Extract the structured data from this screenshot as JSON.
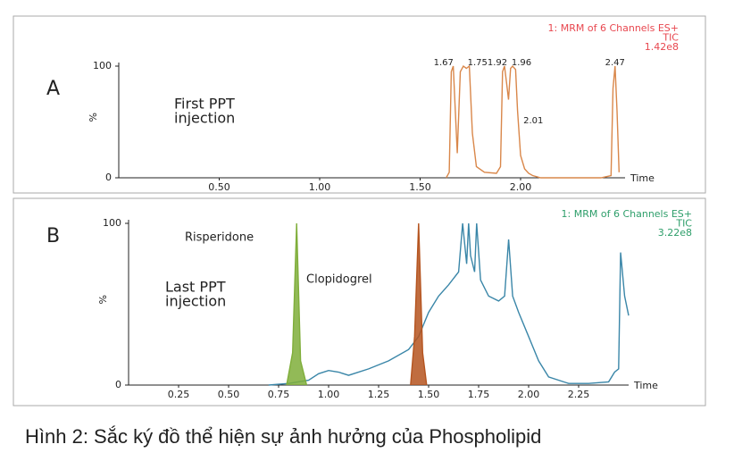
{
  "chart_data": [
    {
      "type": "line",
      "panel": "A",
      "header": [
        "1: MRM of 6 Channels ES+",
        "TIC",
        "1.42e8"
      ],
      "header_color": "#e8474f",
      "annotation": [
        "First PPT",
        "injection"
      ],
      "xlabel": "Time",
      "ylabel": "%",
      "xlim": [
        0,
        2.52
      ],
      "ylim": [
        0,
        100
      ],
      "xticks": [
        {
          "value": 0.5,
          "label": "0.50"
        },
        {
          "value": 1.0,
          "label": "1.00"
        },
        {
          "value": 1.5,
          "label": "1.50"
        },
        {
          "value": 2.0,
          "label": "2.00"
        }
      ],
      "yticks": [
        0,
        100
      ],
      "peak_labels": [
        1.67,
        1.75,
        1.92,
        1.96,
        2.01,
        2.47
      ],
      "series": [
        {
          "color": "#d9874a",
          "x": [
            1.63,
            1.645,
            1.655,
            1.665,
            1.675,
            1.685,
            1.7,
            1.715,
            1.73,
            1.745,
            1.76,
            1.78,
            1.82,
            1.88,
            1.9,
            1.91,
            1.92,
            1.93,
            1.94,
            1.95,
            1.96,
            1.975,
            1.985,
            2.0,
            2.02,
            2.04,
            2.06,
            2.1,
            2.2,
            2.3,
            2.4,
            2.45,
            2.46,
            2.47,
            2.48,
            2.49
          ],
          "values": [
            0,
            5,
            95,
            100,
            60,
            22,
            95,
            100,
            98,
            100,
            40,
            10,
            5,
            4,
            10,
            95,
            100,
            85,
            70,
            98,
            100,
            97,
            60,
            20,
            8,
            4,
            2,
            0,
            0,
            0,
            0,
            2,
            80,
            100,
            60,
            5
          ]
        }
      ]
    },
    {
      "type": "line",
      "panel": "B",
      "header": [
        "1: MRM of 6 Channels ES+",
        "TIC",
        "3.22e8"
      ],
      "header_color": "#2e9e6a",
      "annotation": [
        "Last PPT",
        "injection"
      ],
      "xlabel": "Time",
      "ylabel": "%",
      "xlim": [
        0,
        2.5
      ],
      "ylim": [
        0,
        100
      ],
      "xticks": [
        {
          "value": 0.25,
          "label": "0.25"
        },
        {
          "value": 0.5,
          "label": "0.50"
        },
        {
          "value": 0.75,
          "label": "0.75"
        },
        {
          "value": 1.0,
          "label": "1.00"
        },
        {
          "value": 1.25,
          "label": "1.25"
        },
        {
          "value": 1.5,
          "label": "1.50"
        },
        {
          "value": 1.75,
          "label": "1.75"
        },
        {
          "value": 2.0,
          "label": "2.00"
        },
        {
          "value": 2.25,
          "label": "2.25"
        }
      ],
      "yticks": [
        0,
        100
      ],
      "series": [
        {
          "color": "#3a86a8",
          "x": [
            0.7,
            0.8,
            0.9,
            0.95,
            1.0,
            1.05,
            1.1,
            1.2,
            1.3,
            1.4,
            1.45,
            1.5,
            1.55,
            1.6,
            1.65,
            1.67,
            1.69,
            1.7,
            1.71,
            1.73,
            1.74,
            1.76,
            1.78,
            1.8,
            1.85,
            1.88,
            1.9,
            1.92,
            1.95,
            2.0,
            2.05,
            2.1,
            2.2,
            2.3,
            2.4,
            2.43,
            2.45,
            2.46,
            2.48,
            2.5
          ],
          "values": [
            0,
            1,
            3,
            7,
            9,
            8,
            6,
            10,
            15,
            22,
            30,
            45,
            55,
            62,
            70,
            100,
            75,
            100,
            80,
            70,
            100,
            65,
            60,
            55,
            52,
            55,
            90,
            55,
            45,
            30,
            15,
            5,
            1,
            1,
            2,
            8,
            10,
            82,
            55,
            43
          ]
        },
        {
          "name": "Risperidone",
          "color": "#7fae3a",
          "fill": true,
          "x": [
            0.79,
            0.82,
            0.84,
            0.86,
            0.89
          ],
          "values": [
            0,
            20,
            100,
            15,
            0
          ]
        },
        {
          "name": "Clopidogrel",
          "color": "#b5541f",
          "fill": true,
          "x": [
            1.41,
            1.43,
            1.45,
            1.47,
            1.49
          ],
          "values": [
            0,
            30,
            100,
            20,
            0
          ]
        }
      ]
    }
  ],
  "caption": "Hình 2: Sắc ký đồ thể hiện sự ảnh hưởng của Phospholipid"
}
